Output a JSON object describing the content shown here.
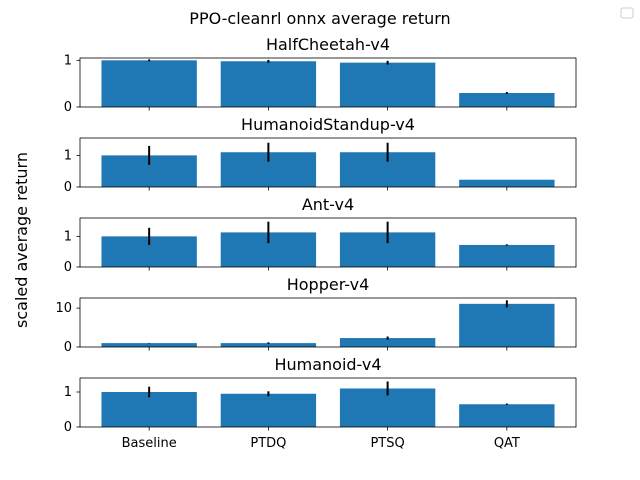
{
  "suptitle": "PPO-cleanrl onnx average return",
  "ylabel": "scaled average return",
  "bar_color": "#1f77b4",
  "error_color": "#000000",
  "legend_marker": "empty-legend-box",
  "chart_data": {
    "type": "bar",
    "categories": [
      "Baseline",
      "PTDQ",
      "PTSQ",
      "QAT"
    ],
    "subplots": [
      {
        "title": "HalfCheetah-v4",
        "values": [
          1.0,
          0.98,
          0.95,
          0.3
        ],
        "errors": [
          0.02,
          0.03,
          0.04,
          0.02
        ],
        "ylim": [
          0,
          1.05
        ],
        "yticks": [
          0,
          1
        ]
      },
      {
        "title": "HumanoidStandup-v4",
        "values": [
          1.0,
          1.1,
          1.1,
          0.23
        ],
        "errors": [
          0.3,
          0.3,
          0.3,
          0.0
        ],
        "ylim": [
          0,
          1.55
        ],
        "yticks": [
          0,
          1
        ]
      },
      {
        "title": "Ant-v4",
        "values": [
          1.0,
          1.13,
          1.13,
          0.72
        ],
        "errors": [
          0.28,
          0.35,
          0.35,
          0.02
        ],
        "ylim": [
          0,
          1.6
        ],
        "yticks": [
          0,
          1
        ]
      },
      {
        "title": "Hopper-v4",
        "values": [
          1.0,
          1.0,
          2.3,
          11.1
        ],
        "errors": [
          0.05,
          0.2,
          0.4,
          0.9
        ],
        "ylim": [
          0,
          12.6
        ],
        "yticks": [
          0,
          10
        ]
      },
      {
        "title": "Humanoid-v4",
        "values": [
          1.0,
          0.95,
          1.1,
          0.65
        ],
        "errors": [
          0.15,
          0.07,
          0.2,
          0.02
        ],
        "ylim": [
          0,
          1.4
        ],
        "yticks": [
          0,
          1
        ]
      }
    ]
  }
}
